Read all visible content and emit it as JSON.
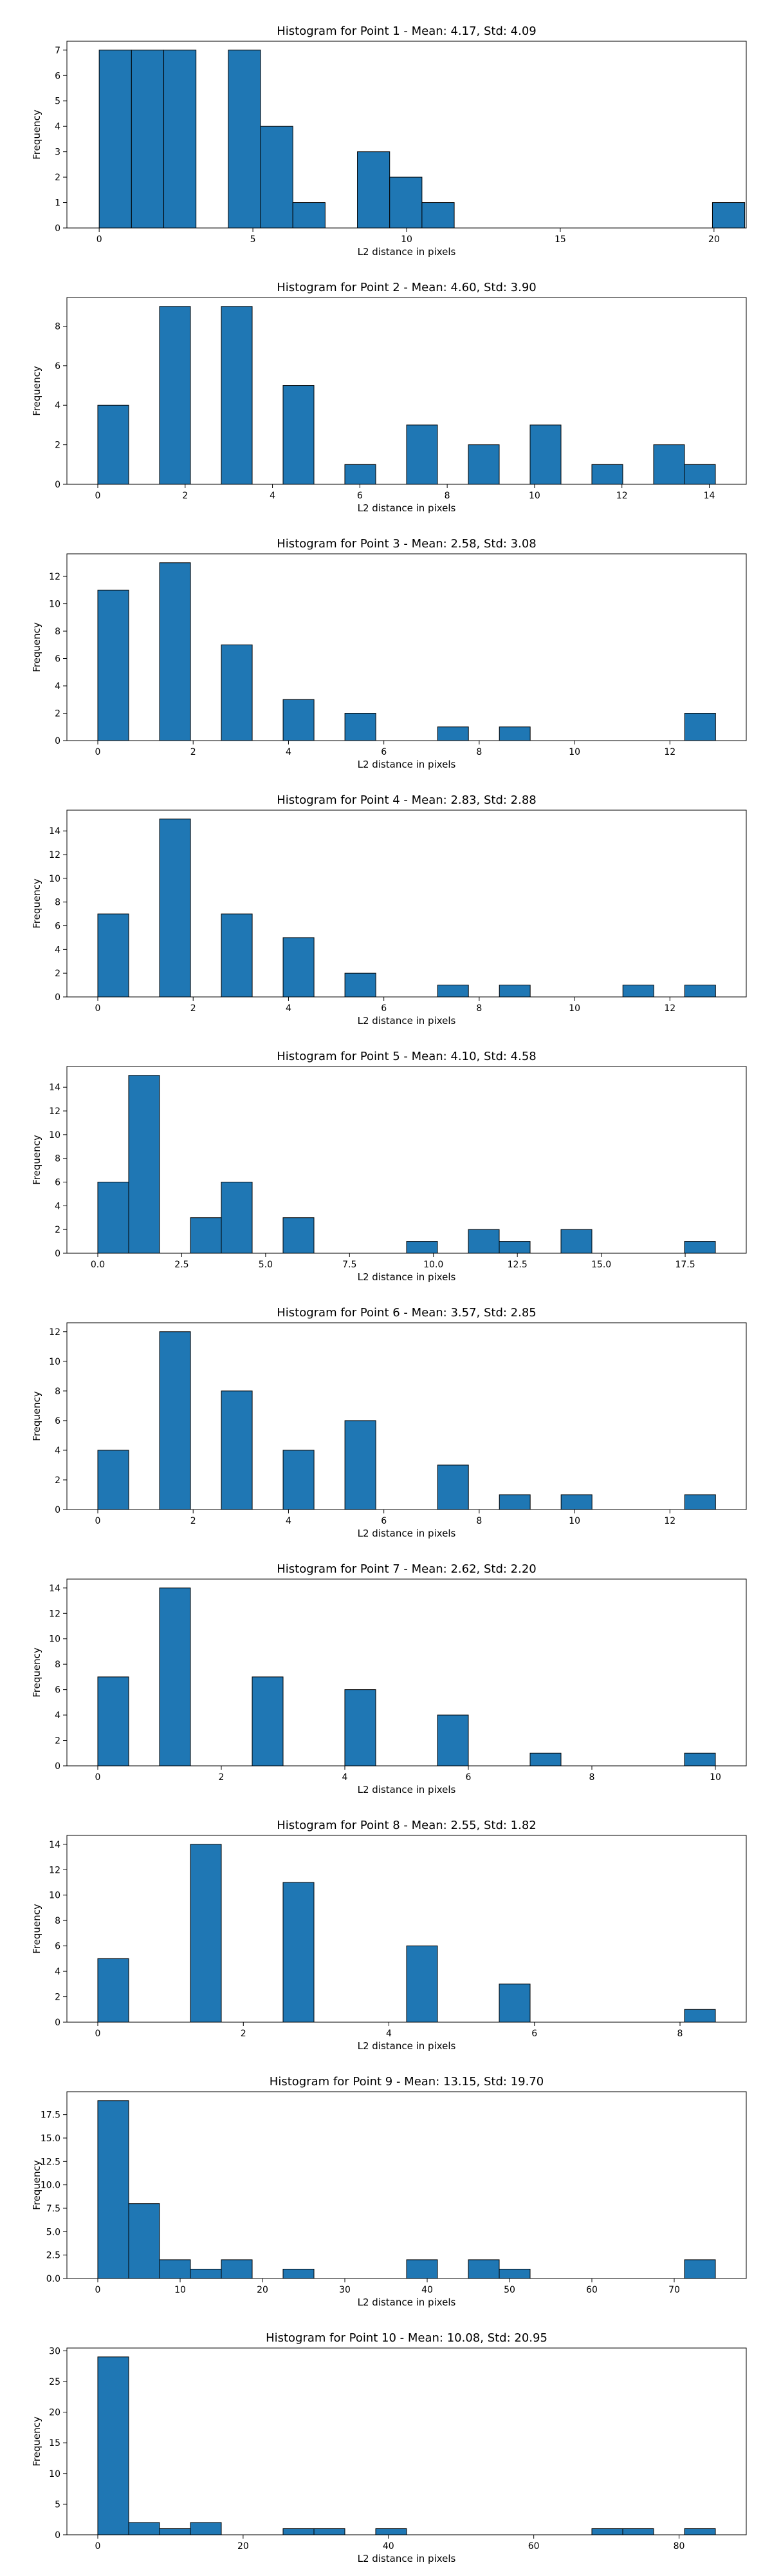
{
  "chart_data": [
    {
      "type": "bar",
      "title": "Histogram for Point 1 - Mean: 4.17, Std: 4.09",
      "xlabel": "L2 distance in pixels",
      "ylabel": "Frequency",
      "xlim": [
        -1.05,
        21.05
      ],
      "ylim": [
        0,
        7.35
      ],
      "xticks": [
        0,
        5,
        10,
        15,
        20
      ],
      "xtick_labels": [
        "0",
        "5",
        "10",
        "15",
        "20"
      ],
      "yticks": [
        0,
        1,
        2,
        3,
        4,
        5,
        6,
        7
      ],
      "ytick_labels": [
        "0",
        "1",
        "2",
        "3",
        "4",
        "5",
        "6",
        "7"
      ],
      "bin_edges": [
        0,
        1.05,
        2.1,
        3.15,
        4.2,
        5.25,
        6.3,
        7.35,
        8.4,
        9.45,
        10.5,
        11.55,
        12.6,
        13.65,
        14.7,
        15.75,
        16.8,
        17.85,
        18.9,
        19.95,
        21.0
      ],
      "values": [
        7,
        7,
        7,
        0,
        7,
        4,
        1,
        0,
        3,
        2,
        1,
        0,
        0,
        0,
        0,
        0,
        0,
        0,
        0,
        1
      ],
      "bar_color": "#1f77b4",
      "grid": false
    },
    {
      "type": "bar",
      "title": "Histogram for Point 2 - Mean: 4.60, Std: 3.90",
      "xlabel": "L2 distance in pixels",
      "ylabel": "Frequency",
      "xlim": [
        -0.707,
        14.847
      ],
      "ylim": [
        0,
        9.45
      ],
      "xticks": [
        0,
        2,
        4,
        6,
        8,
        10,
        12,
        14
      ],
      "xtick_labels": [
        "0",
        "2",
        "4",
        "6",
        "8",
        "10",
        "12",
        "14"
      ],
      "yticks": [
        0,
        2,
        4,
        6,
        8
      ],
      "ytick_labels": [
        "0",
        "2",
        "4",
        "6",
        "8"
      ],
      "bin_edges": [
        0,
        0.707,
        1.414,
        2.121,
        2.828,
        3.535,
        4.242,
        4.949,
        5.656,
        6.363,
        7.07,
        7.777,
        8.484,
        9.191,
        9.898,
        10.605,
        11.312,
        12.019,
        12.726,
        13.433,
        14.14
      ],
      "values": [
        4,
        0,
        9,
        0,
        9,
        0,
        5,
        0,
        1,
        0,
        3,
        0,
        2,
        0,
        3,
        0,
        1,
        0,
        2,
        1
      ],
      "bar_color": "#1f77b4",
      "grid": false
    },
    {
      "type": "bar",
      "title": "Histogram for Point 3 - Mean: 2.58, Std: 3.08",
      "xlabel": "L2 distance in pixels",
      "ylabel": "Frequency",
      "xlim": [
        -0.648,
        13.602
      ],
      "ylim": [
        0,
        13.65
      ],
      "xticks": [
        0,
        2,
        4,
        6,
        8,
        10,
        12
      ],
      "xtick_labels": [
        "0",
        "2",
        "4",
        "6",
        "8",
        "10",
        "12"
      ],
      "yticks": [
        0,
        2,
        4,
        6,
        8,
        10,
        12
      ],
      "ytick_labels": [
        "0",
        "2",
        "4",
        "6",
        "8",
        "10",
        "12"
      ],
      "bin_edges": [
        0,
        0.648,
        1.296,
        1.944,
        2.591,
        3.239,
        3.887,
        4.535,
        5.183,
        5.831,
        6.479,
        7.127,
        7.775,
        8.423,
        9.07,
        9.718,
        10.366,
        11.014,
        11.662,
        12.31,
        12.958
      ],
      "values": [
        11,
        0,
        13,
        0,
        7,
        0,
        3,
        0,
        2,
        0,
        0,
        1,
        0,
        1,
        0,
        0,
        0,
        0,
        0,
        2
      ],
      "bar_color": "#1f77b4",
      "grid": false
    },
    {
      "type": "bar",
      "title": "Histogram for Point 4 - Mean: 2.83, Std: 2.88",
      "xlabel": "L2 distance in pixels",
      "ylabel": "Frequency",
      "xlim": [
        -0.648,
        13.602
      ],
      "ylim": [
        0,
        15.75
      ],
      "xticks": [
        0,
        2,
        4,
        6,
        8,
        10,
        12
      ],
      "xtick_labels": [
        "0",
        "2",
        "4",
        "6",
        "8",
        "10",
        "12"
      ],
      "yticks": [
        0,
        2,
        4,
        6,
        8,
        10,
        12,
        14
      ],
      "ytick_labels": [
        "0",
        "2",
        "4",
        "6",
        "8",
        "10",
        "12",
        "14"
      ],
      "bin_edges": [
        0,
        0.648,
        1.296,
        1.944,
        2.591,
        3.239,
        3.887,
        4.535,
        5.183,
        5.831,
        6.479,
        7.127,
        7.775,
        8.423,
        9.07,
        9.718,
        10.366,
        11.014,
        11.662,
        12.31,
        12.958
      ],
      "values": [
        7,
        0,
        15,
        0,
        7,
        0,
        5,
        0,
        2,
        0,
        0,
        1,
        0,
        1,
        0,
        0,
        0,
        1,
        0,
        1
      ],
      "bar_color": "#1f77b4",
      "grid": false
    },
    {
      "type": "bar",
      "title": "Histogram for Point 5 - Mean: 4.10, Std: 4.58",
      "xlabel": "L2 distance in pixels",
      "ylabel": "Frequency",
      "xlim": [
        -0.92,
        19.32
      ],
      "ylim": [
        0,
        15.75
      ],
      "xticks": [
        0,
        2.5,
        5,
        7.5,
        10,
        12.5,
        15,
        17.5
      ],
      "xtick_labels": [
        "0.0",
        "2.5",
        "5.0",
        "7.5",
        "10.0",
        "12.5",
        "15.0",
        "17.5"
      ],
      "yticks": [
        0,
        2,
        4,
        6,
        8,
        10,
        12,
        14
      ],
      "ytick_labels": [
        "0",
        "2",
        "4",
        "6",
        "8",
        "10",
        "12",
        "14"
      ],
      "bin_edges": [
        0,
        0.92,
        1.84,
        2.76,
        3.68,
        4.6,
        5.52,
        6.44,
        7.36,
        8.28,
        9.2,
        10.12,
        11.04,
        11.96,
        12.88,
        13.8,
        14.72,
        15.64,
        16.56,
        17.48,
        18.4
      ],
      "values": [
        6,
        15,
        0,
        3,
        6,
        0,
        3,
        0,
        0,
        0,
        1,
        0,
        2,
        1,
        0,
        2,
        0,
        0,
        0,
        1
      ],
      "bar_color": "#1f77b4",
      "grid": false
    },
    {
      "type": "bar",
      "title": "Histogram for Point 6 - Mean: 3.57, Std: 2.85",
      "xlabel": "L2 distance in pixels",
      "ylabel": "Frequency",
      "xlim": [
        -0.648,
        13.602
      ],
      "ylim": [
        0,
        12.6
      ],
      "xticks": [
        0,
        2,
        4,
        6,
        8,
        10,
        12
      ],
      "xtick_labels": [
        "0",
        "2",
        "4",
        "6",
        "8",
        "10",
        "12"
      ],
      "yticks": [
        0,
        2,
        4,
        6,
        8,
        10,
        12
      ],
      "ytick_labels": [
        "0",
        "2",
        "4",
        "6",
        "8",
        "10",
        "12"
      ],
      "bin_edges": [
        0,
        0.648,
        1.296,
        1.944,
        2.591,
        3.239,
        3.887,
        4.535,
        5.183,
        5.831,
        6.479,
        7.127,
        7.775,
        8.423,
        9.07,
        9.718,
        10.366,
        11.014,
        11.662,
        12.31,
        12.958
      ],
      "values": [
        4,
        0,
        12,
        0,
        8,
        0,
        4,
        0,
        6,
        0,
        0,
        3,
        0,
        1,
        0,
        1,
        0,
        0,
        0,
        1
      ],
      "bar_color": "#1f77b4",
      "grid": false
    },
    {
      "type": "bar",
      "title": "Histogram for Point 7 - Mean: 2.62, Std: 2.20",
      "xlabel": "L2 distance in pixels",
      "ylabel": "Frequency",
      "xlim": [
        -0.5,
        10.5
      ],
      "ylim": [
        0,
        14.7
      ],
      "xticks": [
        0,
        2,
        4,
        6,
        8,
        10
      ],
      "xtick_labels": [
        "0",
        "2",
        "4",
        "6",
        "8",
        "10"
      ],
      "yticks": [
        0,
        2,
        4,
        6,
        8,
        10,
        12,
        14
      ],
      "ytick_labels": [
        "0",
        "2",
        "4",
        "6",
        "8",
        "10",
        "12",
        "14"
      ],
      "bin_edges": [
        0,
        0.5,
        1.0,
        1.5,
        2.0,
        2.5,
        3.0,
        3.5,
        4.0,
        4.5,
        5.0,
        5.5,
        6.0,
        6.5,
        7.0,
        7.5,
        8.0,
        8.5,
        9.0,
        9.5,
        10.0
      ],
      "values": [
        7,
        0,
        14,
        0,
        0,
        7,
        0,
        0,
        6,
        0,
        0,
        4,
        0,
        0,
        1,
        0,
        0,
        0,
        0,
        1
      ],
      "bar_color": "#1f77b4",
      "grid": false
    },
    {
      "type": "bar",
      "title": "Histogram for Point 8 - Mean: 2.55, Std: 1.82",
      "xlabel": "L2 distance in pixels",
      "ylabel": "Frequency",
      "xlim": [
        -0.4243,
        8.9103
      ],
      "ylim": [
        0,
        14.7
      ],
      "xticks": [
        0,
        2,
        4,
        6,
        8
      ],
      "xtick_labels": [
        "0",
        "2",
        "4",
        "6",
        "8"
      ],
      "yticks": [
        0,
        2,
        4,
        6,
        8,
        10,
        12,
        14
      ],
      "ytick_labels": [
        "0",
        "2",
        "4",
        "6",
        "8",
        "10",
        "12",
        "14"
      ],
      "bin_edges": [
        0,
        0.4243,
        0.8486,
        1.2729,
        1.6972,
        2.1215,
        2.5458,
        2.9701,
        3.3944,
        3.8187,
        4.243,
        4.6673,
        5.0916,
        5.5159,
        5.9402,
        6.3645,
        6.7888,
        7.2131,
        7.6374,
        8.0617,
        8.486
      ],
      "values": [
        5,
        0,
        0,
        14,
        0,
        0,
        11,
        0,
        0,
        0,
        6,
        0,
        0,
        3,
        0,
        0,
        0,
        0,
        0,
        1
      ],
      "bar_color": "#1f77b4",
      "grid": false
    },
    {
      "type": "bar",
      "title": "Histogram for Point 9 - Mean: 13.15, Std: 19.70",
      "xlabel": "L2 distance in pixels",
      "ylabel": "Frequency",
      "xlim": [
        -3.75,
        78.75
      ],
      "ylim": [
        0,
        19.95
      ],
      "xticks": [
        0,
        10,
        20,
        30,
        40,
        50,
        60,
        70
      ],
      "xtick_labels": [
        "0",
        "10",
        "20",
        "30",
        "40",
        "50",
        "60",
        "70"
      ],
      "yticks": [
        0,
        2.5,
        5,
        7.5,
        10,
        12.5,
        15,
        17.5
      ],
      "ytick_labels": [
        "0.0",
        "2.5",
        "5.0",
        "7.5",
        "10.0",
        "12.5",
        "15.0",
        "17.5"
      ],
      "bin_edges": [
        0,
        3.75,
        7.5,
        11.25,
        15.0,
        18.75,
        22.5,
        26.25,
        30.0,
        33.75,
        37.5,
        41.25,
        45.0,
        48.75,
        52.5,
        56.25,
        60.0,
        63.75,
        67.5,
        71.25,
        75.0
      ],
      "values": [
        19,
        8,
        2,
        1,
        2,
        0,
        1,
        0,
        0,
        0,
        2,
        0,
        2,
        1,
        0,
        0,
        0,
        0,
        0,
        2
      ],
      "bar_color": "#1f77b4",
      "grid": false
    },
    {
      "type": "bar",
      "title": "Histogram for Point 10 - Mean: 10.08, Std: 20.95",
      "xlabel": "L2 distance in pixels",
      "ylabel": "Frequency",
      "xlim": [
        -4.25,
        89.25
      ],
      "ylim": [
        0,
        30.45
      ],
      "xticks": [
        0,
        20,
        40,
        60,
        80
      ],
      "xtick_labels": [
        "0",
        "20",
        "40",
        "60",
        "80"
      ],
      "yticks": [
        0,
        5,
        10,
        15,
        20,
        25,
        30
      ],
      "ytick_labels": [
        "0",
        "5",
        "10",
        "15",
        "20",
        "25",
        "30"
      ],
      "bin_edges": [
        0,
        4.25,
        8.5,
        12.75,
        17.0,
        21.25,
        25.5,
        29.75,
        34.0,
        38.25,
        42.5,
        46.75,
        51.0,
        55.25,
        59.5,
        63.75,
        68.0,
        72.25,
        76.5,
        80.75,
        85.0
      ],
      "values": [
        29,
        2,
        1,
        2,
        0,
        0,
        1,
        1,
        0,
        1,
        0,
        0,
        0,
        0,
        0,
        0,
        1,
        1,
        0,
        1
      ],
      "bar_color": "#1f77b4",
      "grid": false
    }
  ]
}
